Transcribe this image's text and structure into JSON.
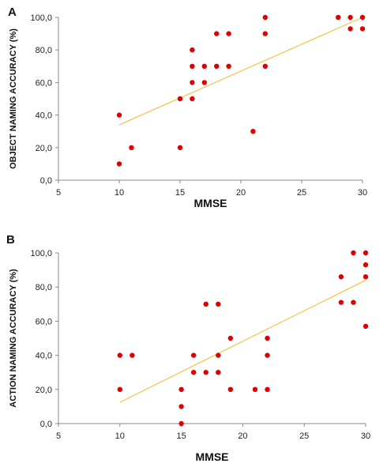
{
  "chart_data": [
    {
      "type": "scatter",
      "panel_label": "A",
      "xlabel": "MMSE",
      "ylabel": "OBJECT NAMING ACCURACY (%)",
      "xlim": [
        5,
        30
      ],
      "ylim": [
        0,
        100
      ],
      "xticks": [
        "5",
        "10",
        "15",
        "20",
        "25",
        "30"
      ],
      "yticks": [
        "0,0",
        "20,0",
        "40,0",
        "60,0",
        "80,0",
        "100,0"
      ],
      "grid": false,
      "point_color": "#e00000",
      "trendline_color": "#f5c242",
      "points": [
        [
          10,
          40
        ],
        [
          10,
          10
        ],
        [
          11,
          20
        ],
        [
          15,
          50
        ],
        [
          15,
          20
        ],
        [
          16,
          80
        ],
        [
          16,
          70
        ],
        [
          16,
          60
        ],
        [
          16,
          50
        ],
        [
          17,
          70
        ],
        [
          17,
          60
        ],
        [
          18,
          90
        ],
        [
          18,
          70
        ],
        [
          19,
          90
        ],
        [
          19,
          70
        ],
        [
          21,
          30
        ],
        [
          22,
          100
        ],
        [
          22,
          90
        ],
        [
          22,
          70
        ],
        [
          28,
          100
        ],
        [
          29,
          100
        ],
        [
          29,
          93
        ],
        [
          30,
          100
        ],
        [
          30,
          93
        ]
      ],
      "trendline": [
        [
          10,
          34
        ],
        [
          30,
          100
        ]
      ]
    },
    {
      "type": "scatter",
      "panel_label": "B",
      "xlabel": "MMSE",
      "ylabel": "ACTION NAMING ACCURACY (%)",
      "xlim": [
        5,
        30
      ],
      "ylim": [
        0,
        100
      ],
      "xticks": [
        "5",
        "10",
        "15",
        "20",
        "25",
        "30"
      ],
      "yticks": [
        "0,0",
        "20,0",
        "40,0",
        "60,0",
        "80,0",
        "100,0"
      ],
      "grid": false,
      "point_color": "#e00000",
      "trendline_color": "#f5c242",
      "points": [
        [
          10,
          40
        ],
        [
          10,
          20
        ],
        [
          11,
          40
        ],
        [
          15,
          20
        ],
        [
          15,
          10
        ],
        [
          15,
          0
        ],
        [
          16,
          40
        ],
        [
          16,
          30
        ],
        [
          17,
          70
        ],
        [
          17,
          30
        ],
        [
          18,
          70
        ],
        [
          18,
          40
        ],
        [
          18,
          30
        ],
        [
          19,
          50
        ],
        [
          19,
          20
        ],
        [
          21,
          20
        ],
        [
          22,
          50
        ],
        [
          22,
          40
        ],
        [
          22,
          20
        ],
        [
          28,
          86
        ],
        [
          28,
          71
        ],
        [
          29,
          100
        ],
        [
          29,
          71
        ],
        [
          30,
          100
        ],
        [
          30,
          93
        ],
        [
          30,
          86
        ],
        [
          30,
          57
        ]
      ],
      "trendline": [
        [
          10,
          12.5
        ],
        [
          30,
          84
        ]
      ]
    }
  ]
}
